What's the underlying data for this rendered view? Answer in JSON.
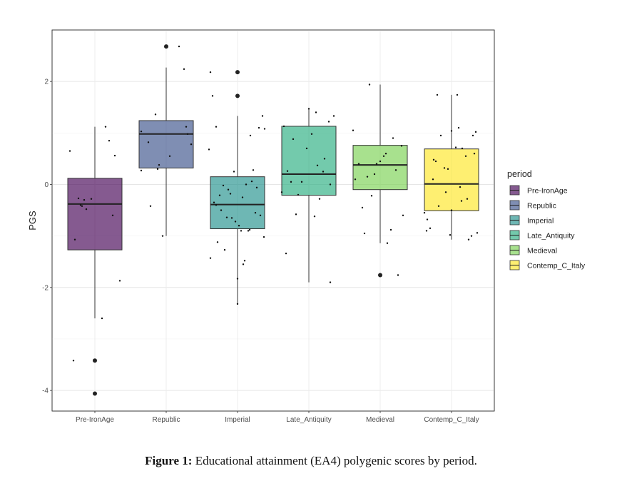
{
  "caption": {
    "label": "Figure 1:",
    "text": " Educational attainment (EA4) polygenic scores by period."
  },
  "chart_data": {
    "type": "box",
    "title": "",
    "xlabel": "",
    "ylabel": "PGS",
    "ylim": [
      -4.4,
      3.0
    ],
    "yticks": [
      -4,
      -2,
      0,
      2
    ],
    "grid": true,
    "legend": {
      "title": "period",
      "placement": "right"
    },
    "categories": [
      "Pre-IronAge",
      "Republic",
      "Imperial",
      "Late_Antiquity",
      "Medieval",
      "Contemp_C_Italy"
    ],
    "colors": [
      "#440154",
      "#3b528b",
      "#21908c",
      "#28ae80",
      "#7ad151",
      "#fde725"
    ],
    "boxes": [
      {
        "name": "Pre-IronAge",
        "whisker_low": -2.6,
        "q1": -1.27,
        "median": -0.38,
        "q3": 0.12,
        "whisker_high": 1.12,
        "outliers": [
          -3.42,
          -4.06
        ]
      },
      {
        "name": "Republic",
        "whisker_low": -1.0,
        "q1": 0.32,
        "median": 0.98,
        "q3": 1.24,
        "whisker_high": 2.27,
        "outliers": [
          2.68
        ]
      },
      {
        "name": "Imperial",
        "whisker_low": -2.32,
        "q1": -0.86,
        "median": -0.39,
        "q3": 0.15,
        "whisker_high": 1.33,
        "outliers": [
          2.18,
          1.72
        ]
      },
      {
        "name": "Late_Antiquity",
        "whisker_low": -1.9,
        "q1": -0.21,
        "median": 0.2,
        "q3": 1.13,
        "whisker_high": 1.46,
        "outliers": []
      },
      {
        "name": "Medieval",
        "whisker_low": -1.14,
        "q1": -0.1,
        "median": 0.38,
        "q3": 0.76,
        "whisker_high": 1.94,
        "outliers": [
          -1.76
        ]
      },
      {
        "name": "Contemp_C_Italy",
        "whisker_low": -1.07,
        "q1": -0.51,
        "median": 0.01,
        "q3": 0.69,
        "whisker_high": 1.74,
        "outliers": []
      }
    ],
    "jitter_points": [
      {
        "x": [
          -0.35,
          -0.23,
          -0.18,
          -0.12,
          -0.05,
          0.2,
          0.28,
          0.35,
          -0.28,
          0.1,
          -0.3,
          -0.15,
          0.25,
          -0.2,
          0.15
        ],
        "y": [
          0.65,
          -0.27,
          -0.42,
          -0.48,
          -0.28,
          0.85,
          0.56,
          -1.87,
          -1.07,
          -2.6,
          -3.42,
          -0.3,
          -0.6,
          -0.4,
          1.12
        ]
      },
      {
        "x": [
          -0.35,
          -0.25,
          -0.15,
          -0.1,
          0.25,
          0.28,
          0.35,
          -0.35,
          -0.22,
          -0.05,
          0.3,
          0.18,
          -0.12,
          0.05
        ],
        "y": [
          1.03,
          0.82,
          1.36,
          0.38,
          2.24,
          1.12,
          0.78,
          0.27,
          -0.42,
          -1.0,
          0.98,
          2.68,
          0.3,
          0.55
        ]
      },
      {
        "x": [
          -0.4,
          -0.35,
          -0.3,
          -0.25,
          -0.2,
          -0.15,
          -0.1,
          -0.05,
          0.0,
          0.05,
          0.1,
          0.15,
          0.2,
          0.25,
          0.3,
          0.35,
          -0.38,
          -0.28,
          -0.18,
          -0.08,
          0.02,
          0.12,
          0.22,
          0.32,
          -0.33,
          -0.23,
          -0.13,
          -0.03,
          0.07,
          0.17,
          0.27,
          0.37,
          0.0,
          0.18,
          0.38,
          -0.38,
          -0.3,
          0.08
        ],
        "y": [
          0.68,
          1.72,
          1.12,
          -0.21,
          -0.02,
          -0.64,
          -0.18,
          0.25,
          -1.83,
          -0.9,
          -1.48,
          -0.9,
          0.06,
          -0.55,
          1.1,
          1.33,
          -1.43,
          -1.12,
          -1.27,
          -0.65,
          -0.8,
          0.0,
          0.28,
          -0.6,
          -0.35,
          -0.5,
          -0.1,
          -0.72,
          -0.25,
          -0.88,
          -0.06,
          -1.02,
          -2.32,
          0.95,
          1.08,
          2.18,
          -0.4,
          -1.55
        ]
      },
      {
        "x": [
          -0.38,
          -0.32,
          -0.25,
          -0.18,
          -0.1,
          -0.03,
          0.04,
          0.12,
          0.2,
          0.28,
          0.35,
          -0.3,
          -0.15,
          0.0,
          0.15,
          0.3,
          -0.22,
          0.08,
          0.22,
          -0.35,
          0.3,
          0.1
        ],
        "y": [
          -0.15,
          -1.34,
          0.05,
          -0.58,
          0.05,
          0.7,
          0.98,
          0.37,
          0.25,
          1.22,
          1.33,
          0.26,
          -0.2,
          1.47,
          -0.28,
          -1.9,
          0.88,
          -0.62,
          0.5,
          1.13,
          0.0,
          1.4
        ]
      },
      {
        "x": [
          -0.38,
          -0.3,
          -0.22,
          -0.15,
          -0.08,
          0.0,
          0.08,
          0.15,
          0.22,
          0.3,
          -0.35,
          -0.25,
          -0.12,
          0.05,
          0.18,
          0.32,
          -0.18,
          0.1,
          0.25,
          -0.05
        ],
        "y": [
          1.05,
          0.4,
          -0.95,
          1.94,
          0.2,
          0.45,
          0.6,
          -0.88,
          0.28,
          0.75,
          0.1,
          -0.45,
          -0.22,
          0.55,
          0.9,
          -0.6,
          0.15,
          -1.14,
          -1.76,
          0.4
        ]
      },
      {
        "x": [
          -0.38,
          -0.3,
          -0.22,
          -0.15,
          -0.08,
          0.0,
          0.08,
          0.15,
          0.22,
          0.3,
          0.36,
          -0.34,
          -0.26,
          -0.18,
          -0.1,
          -0.02,
          0.06,
          0.14,
          0.24,
          0.34,
          -0.2,
          0.0,
          0.2,
          -0.35,
          0.28,
          -0.05,
          0.12,
          -0.25,
          0.32,
          0.1
        ],
        "y": [
          -0.55,
          -0.85,
          0.45,
          0.95,
          -0.15,
          1.04,
          1.74,
          0.7,
          -0.28,
          0.95,
          -0.94,
          -0.68,
          0.1,
          -0.42,
          0.32,
          -0.98,
          0.72,
          -0.32,
          -1.07,
          1.02,
          1.74,
          -0.5,
          0.55,
          -0.9,
          -1.0,
          0.3,
          -0.05,
          0.48,
          0.6,
          1.1
        ]
      }
    ]
  }
}
